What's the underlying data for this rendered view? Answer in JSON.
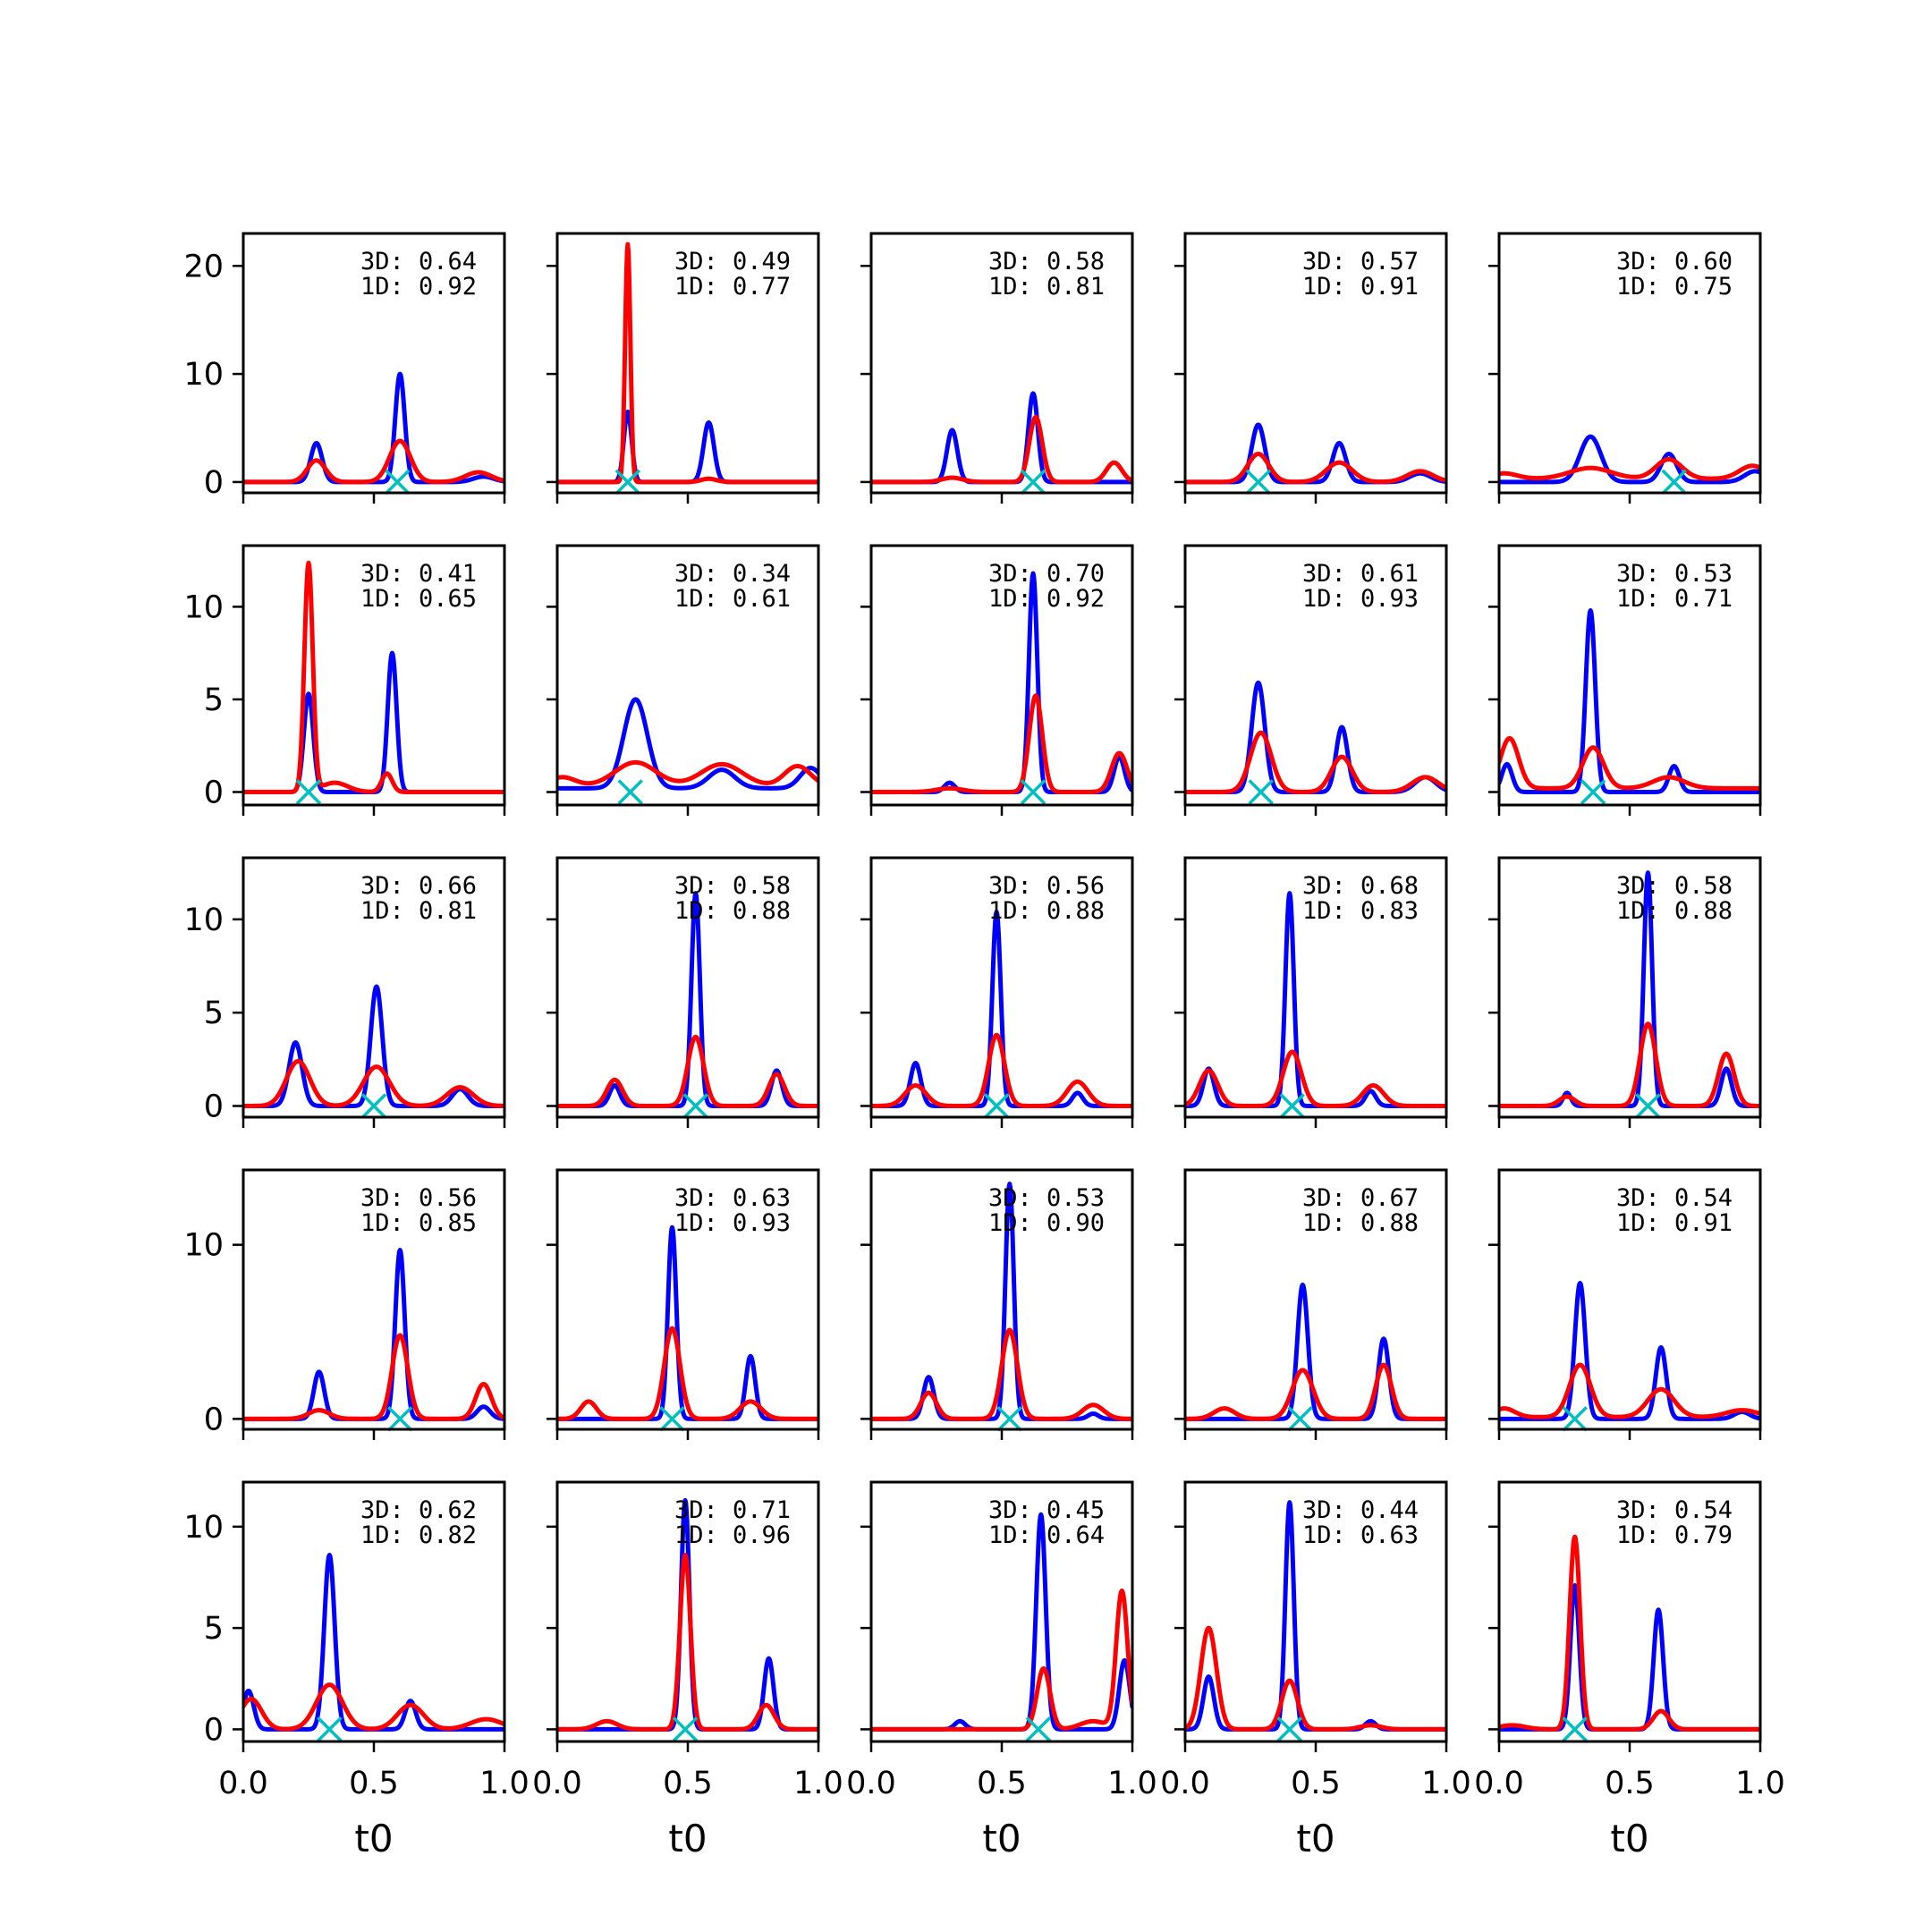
{
  "chart_data": {
    "type": "line",
    "layout": "5x5 small multiples",
    "xlim": [
      0,
      1
    ],
    "x_ticks": [
      "0.0",
      "0.5",
      "1.0"
    ],
    "xlabel": "t0",
    "series_colors": {
      "blue": "#0000ff",
      "red": "#ff0000",
      "marker": "#00bfbf"
    },
    "panels": [
      {
        "id": "r1c1",
        "ylim": [
          -1,
          23
        ],
        "yticks": [
          "0",
          "10",
          "20"
        ],
        "annot": [
          "3D: 0.64",
          "1D: 0.92"
        ],
        "marker_x": 0.59,
        "blue": [
          [
            0.28,
            3.6,
            0.022
          ],
          [
            0.6,
            10.0,
            0.018
          ],
          [
            0.92,
            0.5,
            0.04
          ]
        ],
        "red": [
          [
            0.28,
            2.0,
            0.035
          ],
          [
            0.6,
            3.8,
            0.04
          ],
          [
            0.9,
            0.9,
            0.05
          ]
        ],
        "blue_base": 0,
        "red_base": 0
      },
      {
        "id": "r1c2",
        "ylim": [
          -1,
          23
        ],
        "yticks": [],
        "annot": [
          "3D: 0.49",
          "1D: 0.77"
        ],
        "marker_x": 0.27,
        "blue": [
          [
            0.27,
            6.5,
            0.015
          ],
          [
            0.58,
            5.5,
            0.02
          ]
        ],
        "red": [
          [
            0.27,
            22.0,
            0.01
          ],
          [
            0.58,
            0.3,
            0.03
          ]
        ],
        "blue_base": 0,
        "red_base": 0
      },
      {
        "id": "r1c3",
        "ylim": [
          -1,
          23
        ],
        "yticks": [],
        "annot": [
          "3D: 0.58",
          "1D: 0.81"
        ],
        "marker_x": 0.62,
        "blue": [
          [
            0.31,
            4.8,
            0.02
          ],
          [
            0.62,
            8.2,
            0.018
          ]
        ],
        "red": [
          [
            0.31,
            0.4,
            0.04
          ],
          [
            0.63,
            6.0,
            0.025
          ],
          [
            0.93,
            1.8,
            0.03
          ]
        ],
        "blue_base": 0,
        "red_base": 0
      },
      {
        "id": "r1c4",
        "ylim": [
          -1,
          23
        ],
        "yticks": [],
        "annot": [
          "3D: 0.57",
          "1D: 0.91"
        ],
        "marker_x": 0.28,
        "blue": [
          [
            0.28,
            5.3,
            0.025
          ],
          [
            0.59,
            3.6,
            0.025
          ],
          [
            0.9,
            0.8,
            0.04
          ]
        ],
        "red": [
          [
            0.28,
            2.6,
            0.04
          ],
          [
            0.59,
            1.8,
            0.05
          ],
          [
            0.9,
            1.0,
            0.05
          ]
        ],
        "blue_base": 0,
        "red_base": 0
      },
      {
        "id": "r1c5",
        "ylim": [
          -1,
          23
        ],
        "yticks": [],
        "annot": [
          "3D: 0.60",
          "1D: 0.75"
        ],
        "marker_x": 0.67,
        "blue": [
          [
            0.35,
            4.2,
            0.04
          ],
          [
            0.65,
            2.6,
            0.03
          ],
          [
            0.98,
            1.0,
            0.04
          ]
        ],
        "red": [
          [
            0.02,
            0.5,
            0.05
          ],
          [
            0.35,
            1.0,
            0.08
          ],
          [
            0.65,
            1.8,
            0.05
          ],
          [
            0.97,
            1.2,
            0.05
          ]
        ],
        "blue_base": 0,
        "red_base": 0.3
      },
      {
        "id": "r2c1",
        "ylim": [
          -0.7,
          13.3
        ],
        "yticks": [
          "0",
          "5",
          "10"
        ],
        "annot": [
          "3D: 0.41",
          "1D: 0.65"
        ],
        "marker_x": 0.25,
        "blue": [
          [
            0.25,
            5.3,
            0.018
          ],
          [
            0.57,
            7.5,
            0.017
          ]
        ],
        "red": [
          [
            0.25,
            12.3,
            0.016
          ],
          [
            0.55,
            1.0,
            0.02
          ],
          [
            0.35,
            0.5,
            0.05
          ]
        ],
        "blue_base": 0,
        "red_base": 0
      },
      {
        "id": "r2c2",
        "ylim": [
          -0.7,
          13.3
        ],
        "yticks": [],
        "annot": [
          "3D: 0.34",
          "1D: 0.61"
        ],
        "marker_x": 0.28,
        "blue": [
          [
            0.3,
            4.8,
            0.045
          ],
          [
            0.63,
            1.0,
            0.05
          ],
          [
            0.97,
            1.1,
            0.04
          ]
        ],
        "red": [
          [
            0.02,
            0.5,
            0.05
          ],
          [
            0.3,
            1.3,
            0.08
          ],
          [
            0.63,
            1.2,
            0.08
          ],
          [
            0.92,
            1.1,
            0.05
          ]
        ],
        "blue_base": 0.2,
        "red_base": 0.3
      },
      {
        "id": "r2c3",
        "ylim": [
          -0.7,
          13.3
        ],
        "yticks": [],
        "annot": [
          "3D: 0.70",
          "1D: 0.92"
        ],
        "marker_x": 0.62,
        "blue": [
          [
            0.62,
            11.8,
            0.016
          ],
          [
            0.3,
            0.5,
            0.02
          ],
          [
            0.95,
            1.9,
            0.02
          ]
        ],
        "red": [
          [
            0.63,
            5.2,
            0.025
          ],
          [
            0.95,
            2.1,
            0.03
          ],
          [
            0.3,
            0.2,
            0.05
          ]
        ],
        "blue_base": 0,
        "red_base": 0
      },
      {
        "id": "r2c4",
        "ylim": [
          -0.7,
          13.3
        ],
        "yticks": [],
        "annot": [
          "3D: 0.61",
          "1D: 0.93"
        ],
        "marker_x": 0.29,
        "blue": [
          [
            0.28,
            5.9,
            0.025
          ],
          [
            0.6,
            3.5,
            0.022
          ],
          [
            0.92,
            0.8,
            0.04
          ]
        ],
        "red": [
          [
            0.29,
            3.2,
            0.04
          ],
          [
            0.6,
            1.9,
            0.04
          ],
          [
            0.92,
            0.8,
            0.05
          ]
        ],
        "blue_base": 0,
        "red_base": 0
      },
      {
        "id": "r2c5",
        "ylim": [
          -0.7,
          13.3
        ],
        "yticks": [],
        "annot": [
          "3D: 0.53",
          "1D: 0.71"
        ],
        "marker_x": 0.36,
        "blue": [
          [
            0.03,
            1.5,
            0.02
          ],
          [
            0.35,
            9.8,
            0.018
          ],
          [
            0.67,
            1.4,
            0.02
          ]
        ],
        "red": [
          [
            0.04,
            2.7,
            0.035
          ],
          [
            0.36,
            2.2,
            0.04
          ],
          [
            0.65,
            0.6,
            0.06
          ]
        ],
        "blue_base": 0,
        "red_base": 0.2
      },
      {
        "id": "r3c1",
        "ylim": [
          -0.6,
          13.3
        ],
        "yticks": [
          "0",
          "5",
          "10"
        ],
        "annot": [
          "3D: 0.66",
          "1D: 0.81"
        ],
        "marker_x": 0.5,
        "blue": [
          [
            0.2,
            3.4,
            0.025
          ],
          [
            0.51,
            6.4,
            0.022
          ],
          [
            0.83,
            0.9,
            0.03
          ]
        ],
        "red": [
          [
            0.21,
            2.4,
            0.045
          ],
          [
            0.51,
            2.1,
            0.05
          ],
          [
            0.83,
            1.0,
            0.05
          ]
        ],
        "blue_base": 0,
        "red_base": 0
      },
      {
        "id": "r3c2",
        "ylim": [
          -0.6,
          13.3
        ],
        "yticks": [],
        "annot": [
          "3D: 0.58",
          "1D: 0.88"
        ],
        "marker_x": 0.53,
        "blue": [
          [
            0.22,
            1.1,
            0.02
          ],
          [
            0.53,
            11.4,
            0.016
          ],
          [
            0.84,
            1.9,
            0.02
          ]
        ],
        "red": [
          [
            0.22,
            1.4,
            0.03
          ],
          [
            0.53,
            3.7,
            0.03
          ],
          [
            0.84,
            1.7,
            0.03
          ]
        ],
        "blue_base": 0,
        "red_base": 0
      },
      {
        "id": "r3c3",
        "ylim": [
          -0.6,
          13.3
        ],
        "yticks": [],
        "annot": [
          "3D: 0.56",
          "1D: 0.88"
        ],
        "marker_x": 0.48,
        "blue": [
          [
            0.17,
            2.3,
            0.02
          ],
          [
            0.48,
            10.4,
            0.016
          ],
          [
            0.79,
            0.7,
            0.02
          ]
        ],
        "red": [
          [
            0.17,
            1.1,
            0.04
          ],
          [
            0.48,
            3.8,
            0.03
          ],
          [
            0.79,
            1.3,
            0.04
          ]
        ],
        "blue_base": 0,
        "red_base": 0
      },
      {
        "id": "r3c4",
        "ylim": [
          -0.6,
          13.3
        ],
        "yticks": [],
        "annot": [
          "3D: 0.68",
          "1D: 0.83"
        ],
        "marker_x": 0.41,
        "blue": [
          [
            0.09,
            2.0,
            0.02
          ],
          [
            0.4,
            11.4,
            0.016
          ],
          [
            0.71,
            0.8,
            0.02
          ]
        ],
        "red": [
          [
            0.09,
            1.9,
            0.035
          ],
          [
            0.41,
            2.9,
            0.035
          ],
          [
            0.72,
            1.1,
            0.04
          ]
        ],
        "blue_base": 0,
        "red_base": 0
      },
      {
        "id": "r3c5",
        "ylim": [
          -0.6,
          13.3
        ],
        "yticks": [],
        "annot": [
          "3D: 0.58",
          "1D: 0.88"
        ],
        "marker_x": 0.57,
        "blue": [
          [
            0.26,
            0.7,
            0.015
          ],
          [
            0.57,
            12.5,
            0.016
          ],
          [
            0.87,
            2.0,
            0.02
          ]
        ],
        "red": [
          [
            0.26,
            0.5,
            0.03
          ],
          [
            0.57,
            4.4,
            0.03
          ],
          [
            0.87,
            2.8,
            0.03
          ]
        ],
        "blue_base": 0,
        "red_base": 0
      },
      {
        "id": "r4c1",
        "ylim": [
          -0.6,
          14.3
        ],
        "yticks": [
          "0",
          "10"
        ],
        "annot": [
          "3D: 0.56",
          "1D: 0.85"
        ],
        "marker_x": 0.6,
        "blue": [
          [
            0.29,
            2.7,
            0.02
          ],
          [
            0.6,
            9.7,
            0.018
          ],
          [
            0.92,
            0.7,
            0.025
          ]
        ],
        "red": [
          [
            0.29,
            0.5,
            0.04
          ],
          [
            0.6,
            4.8,
            0.03
          ],
          [
            0.92,
            2.0,
            0.03
          ]
        ],
        "blue_base": 0,
        "red_base": 0
      },
      {
        "id": "r4c2",
        "ylim": [
          -0.6,
          14.3
        ],
        "yticks": [],
        "annot": [
          "3D: 0.63",
          "1D: 0.93"
        ],
        "marker_x": 0.44,
        "blue": [
          [
            0.44,
            11.0,
            0.016
          ],
          [
            0.74,
            3.6,
            0.018
          ]
        ],
        "red": [
          [
            0.12,
            1.0,
            0.03
          ],
          [
            0.44,
            5.2,
            0.03
          ],
          [
            0.74,
            1.0,
            0.04
          ]
        ],
        "blue_base": 0,
        "red_base": 0
      },
      {
        "id": "r4c3",
        "ylim": [
          -0.6,
          14.3
        ],
        "yticks": [],
        "annot": [
          "3D: 0.53",
          "1D: 0.90"
        ],
        "marker_x": 0.53,
        "blue": [
          [
            0.22,
            2.4,
            0.02
          ],
          [
            0.53,
            13.5,
            0.016
          ],
          [
            0.85,
            0.3,
            0.02
          ]
        ],
        "red": [
          [
            0.22,
            1.5,
            0.03
          ],
          [
            0.53,
            5.1,
            0.03
          ],
          [
            0.85,
            0.8,
            0.04
          ]
        ],
        "blue_base": 0,
        "red_base": 0
      },
      {
        "id": "r4c4",
        "ylim": [
          -0.6,
          14.3
        ],
        "yticks": [],
        "annot": [
          "3D: 0.67",
          "1D: 0.88"
        ],
        "marker_x": 0.44,
        "blue": [
          [
            0.45,
            7.7,
            0.02
          ],
          [
            0.76,
            4.6,
            0.02
          ]
        ],
        "red": [
          [
            0.15,
            0.6,
            0.04
          ],
          [
            0.45,
            2.8,
            0.04
          ],
          [
            0.76,
            3.1,
            0.03
          ]
        ],
        "blue_base": 0,
        "red_base": 0
      },
      {
        "id": "r4c5",
        "ylim": [
          -0.6,
          14.3
        ],
        "yticks": [],
        "annot": [
          "3D: 0.54",
          "1D: 0.91"
        ],
        "marker_x": 0.29,
        "blue": [
          [
            0.31,
            7.8,
            0.02
          ],
          [
            0.62,
            4.1,
            0.02
          ],
          [
            0.93,
            0.4,
            0.03
          ]
        ],
        "red": [
          [
            0.02,
            0.5,
            0.04
          ],
          [
            0.31,
            3.0,
            0.04
          ],
          [
            0.62,
            1.6,
            0.05
          ],
          [
            0.93,
            0.4,
            0.06
          ]
        ],
        "blue_base": 0,
        "red_base": 0.1
      },
      {
        "id": "r5c1",
        "ylim": [
          -0.6,
          12.2
        ],
        "yticks": [
          "0",
          "5",
          "10"
        ],
        "annot": [
          "3D: 0.62",
          "1D: 0.82"
        ],
        "marker_x": 0.33,
        "blue": [
          [
            0.02,
            1.9,
            0.02
          ],
          [
            0.33,
            8.6,
            0.02
          ],
          [
            0.64,
            1.4,
            0.02
          ]
        ],
        "red": [
          [
            0.03,
            1.5,
            0.04
          ],
          [
            0.33,
            2.2,
            0.05
          ],
          [
            0.64,
            1.2,
            0.05
          ],
          [
            0.93,
            0.5,
            0.06
          ]
        ],
        "blue_base": 0,
        "red_base": 0
      },
      {
        "id": "r5c2",
        "ylim": [
          -0.6,
          12.2
        ],
        "yticks": [],
        "annot": [
          "3D: 0.71",
          "1D: 0.96"
        ],
        "marker_x": 0.49,
        "blue": [
          [
            0.49,
            11.3,
            0.016
          ],
          [
            0.81,
            3.5,
            0.018
          ]
        ],
        "red": [
          [
            0.19,
            0.4,
            0.04
          ],
          [
            0.49,
            8.6,
            0.02
          ],
          [
            0.8,
            1.2,
            0.03
          ]
        ],
        "blue_base": 0,
        "red_base": 0
      },
      {
        "id": "r5c3",
        "ylim": [
          -0.6,
          12.2
        ],
        "yticks": [],
        "annot": [
          "3D: 0.45",
          "1D: 0.64"
        ],
        "marker_x": 0.64,
        "blue": [
          [
            0.34,
            0.4,
            0.02
          ],
          [
            0.65,
            10.6,
            0.018
          ],
          [
            0.97,
            3.4,
            0.02
          ]
        ],
        "red": [
          [
            0.66,
            3.0,
            0.025
          ],
          [
            0.96,
            6.8,
            0.022
          ],
          [
            0.85,
            0.4,
            0.05
          ]
        ],
        "blue_base": 0,
        "red_base": 0
      },
      {
        "id": "r5c4",
        "ylim": [
          -0.6,
          12.2
        ],
        "yticks": [],
        "annot": [
          "3D: 0.44",
          "1D: 0.63"
        ],
        "marker_x": 0.4,
        "blue": [
          [
            0.09,
            2.6,
            0.02
          ],
          [
            0.4,
            11.2,
            0.016
          ],
          [
            0.71,
            0.4,
            0.02
          ]
        ],
        "red": [
          [
            0.09,
            5.0,
            0.03
          ],
          [
            0.4,
            2.4,
            0.03
          ],
          [
            0.71,
            0.2,
            0.04
          ]
        ],
        "blue_base": 0,
        "red_base": 0
      },
      {
        "id": "r5c5",
        "ylim": [
          -0.6,
          12.2
        ],
        "yticks": [],
        "annot": [
          "3D: 0.54",
          "1D: 0.79"
        ],
        "marker_x": 0.29,
        "blue": [
          [
            0.29,
            7.1,
            0.017
          ],
          [
            0.61,
            5.9,
            0.018
          ]
        ],
        "red": [
          [
            0.29,
            9.5,
            0.02
          ],
          [
            0.62,
            0.9,
            0.03
          ],
          [
            0.05,
            0.2,
            0.05
          ]
        ],
        "blue_base": 0,
        "red_base": 0
      }
    ]
  }
}
